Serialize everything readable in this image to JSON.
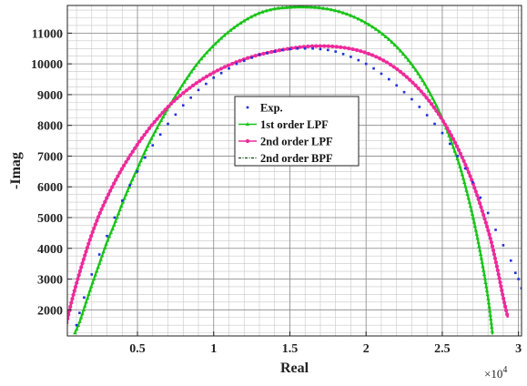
{
  "chart_data": {
    "type": "scatter",
    "title": "",
    "xlabel": "Real",
    "ylabel": "-Imag",
    "x_exponent_label": "×10",
    "x_exponent_power": "4",
    "xlim": [
      0.04,
      3.02
    ],
    "ylim": [
      1150,
      11900
    ],
    "grid": true,
    "legend_position": "center",
    "x_ticks": [
      0.5,
      1,
      1.5,
      2,
      2.5,
      3
    ],
    "x_tick_labels": [
      "0.5",
      "1",
      "1.5",
      "2",
      "2.5",
      "3"
    ],
    "y_ticks": [
      2000,
      3000,
      4000,
      5000,
      6000,
      7000,
      8000,
      9000,
      10000,
      11000
    ],
    "y_tick_labels": [
      "2000",
      "3000",
      "4000",
      "5000",
      "6000",
      "7000",
      "8000",
      "9000",
      "10000",
      "11000"
    ],
    "series": [
      {
        "name": "Exp.",
        "color": "#1f2fe0",
        "marker": "dot",
        "x": [
          0.1,
          0.12,
          0.15,
          0.2,
          0.25,
          0.3,
          0.35,
          0.4,
          0.45,
          0.5,
          0.55,
          0.6,
          0.65,
          0.7,
          0.75,
          0.8,
          0.85,
          0.9,
          0.95,
          1.0,
          1.05,
          1.1,
          1.15,
          1.2,
          1.25,
          1.3,
          1.35,
          1.4,
          1.45,
          1.5,
          1.55,
          1.6,
          1.65,
          1.7,
          1.75,
          1.8,
          1.85,
          1.9,
          1.95,
          2.0,
          2.05,
          2.1,
          2.15,
          2.2,
          2.25,
          2.3,
          2.35,
          2.4,
          2.45,
          2.5,
          2.55,
          2.6,
          2.65,
          2.7,
          2.75,
          2.8,
          2.85,
          2.9,
          2.95,
          2.98,
          3.0,
          3.02
        ],
        "y": [
          1500,
          1900,
          2400,
          3150,
          3800,
          4400,
          5000,
          5550,
          6050,
          6500,
          6950,
          7350,
          7700,
          8050,
          8350,
          8650,
          8900,
          9150,
          9350,
          9550,
          9700,
          9850,
          10000,
          10100,
          10200,
          10300,
          10350,
          10400,
          10450,
          10480,
          10500,
          10500,
          10500,
          10480,
          10450,
          10400,
          10320,
          10230,
          10120,
          10000,
          9850,
          9680,
          9500,
          9300,
          9080,
          8850,
          8600,
          8330,
          8050,
          7750,
          7400,
          7000,
          6600,
          6150,
          5650,
          5150,
          4600,
          4100,
          3600,
          3200,
          3000,
          2700
        ]
      },
      {
        "name": "1st order LPF",
        "color": "#17c417",
        "marker": "triangle",
        "x": [
          0.09,
          0.12,
          0.16,
          0.2,
          0.25,
          0.3,
          0.35,
          0.4,
          0.45,
          0.5,
          0.55,
          0.6,
          0.7,
          0.8,
          0.9,
          1.0,
          1.1,
          1.2,
          1.3,
          1.4,
          1.5,
          1.6,
          1.7,
          1.8,
          1.9,
          2.0,
          2.1,
          2.2,
          2.3,
          2.4,
          2.5,
          2.6,
          2.65,
          2.7,
          2.75,
          2.8,
          2.83
        ],
        "y": [
          1250,
          1600,
          2200,
          2800,
          3500,
          4200,
          4800,
          5450,
          6050,
          6600,
          7150,
          7650,
          8550,
          9350,
          10050,
          10600,
          11050,
          11400,
          11650,
          11790,
          11840,
          11850,
          11820,
          11730,
          11570,
          11330,
          11000,
          10560,
          9980,
          9220,
          8220,
          6900,
          6050,
          5050,
          3850,
          2400,
          1200
        ]
      },
      {
        "name": "2nd order LPF",
        "color": "#ee2a9a",
        "marker": "star",
        "x": [
          0.03,
          0.05,
          0.08,
          0.12,
          0.16,
          0.2,
          0.25,
          0.3,
          0.35,
          0.4,
          0.45,
          0.5,
          0.55,
          0.6,
          0.7,
          0.8,
          0.9,
          1.0,
          1.1,
          1.2,
          1.3,
          1.4,
          1.5,
          1.6,
          1.7,
          1.8,
          1.9,
          2.0,
          2.1,
          2.2,
          2.3,
          2.4,
          2.5,
          2.6,
          2.7,
          2.8,
          2.85,
          2.9,
          2.93
        ],
        "y": [
          1450,
          1900,
          2500,
          3200,
          3850,
          4450,
          5100,
          5650,
          6150,
          6600,
          7000,
          7380,
          7720,
          8040,
          8600,
          9050,
          9420,
          9720,
          9960,
          10150,
          10300,
          10410,
          10500,
          10560,
          10580,
          10560,
          10490,
          10360,
          10150,
          9840,
          9420,
          8880,
          8180,
          7280,
          6130,
          4600,
          3600,
          2400,
          1750
        ]
      },
      {
        "name": "2nd order BPF",
        "color": "#114411",
        "marker": "dash-dot",
        "x": [
          0.09,
          0.12,
          0.16,
          0.2,
          0.25,
          0.3,
          0.35,
          0.4,
          0.45,
          0.5,
          0.55,
          0.6,
          0.7,
          0.8,
          0.9,
          1.0,
          1.1,
          1.2,
          1.3,
          1.4,
          1.5,
          1.6,
          1.7,
          1.8,
          1.9,
          2.0,
          2.1,
          2.2,
          2.3,
          2.4,
          2.5,
          2.6,
          2.65,
          2.7,
          2.75,
          2.8,
          2.83
        ],
        "y": [
          1250,
          1600,
          2200,
          2800,
          3500,
          4200,
          4800,
          5450,
          6050,
          6600,
          7150,
          7650,
          8550,
          9350,
          10050,
          10600,
          11050,
          11400,
          11650,
          11790,
          11840,
          11850,
          11820,
          11730,
          11570,
          11330,
          11000,
          10560,
          9980,
          9220,
          8220,
          6900,
          6050,
          5050,
          3850,
          2400,
          1200
        ]
      }
    ]
  }
}
